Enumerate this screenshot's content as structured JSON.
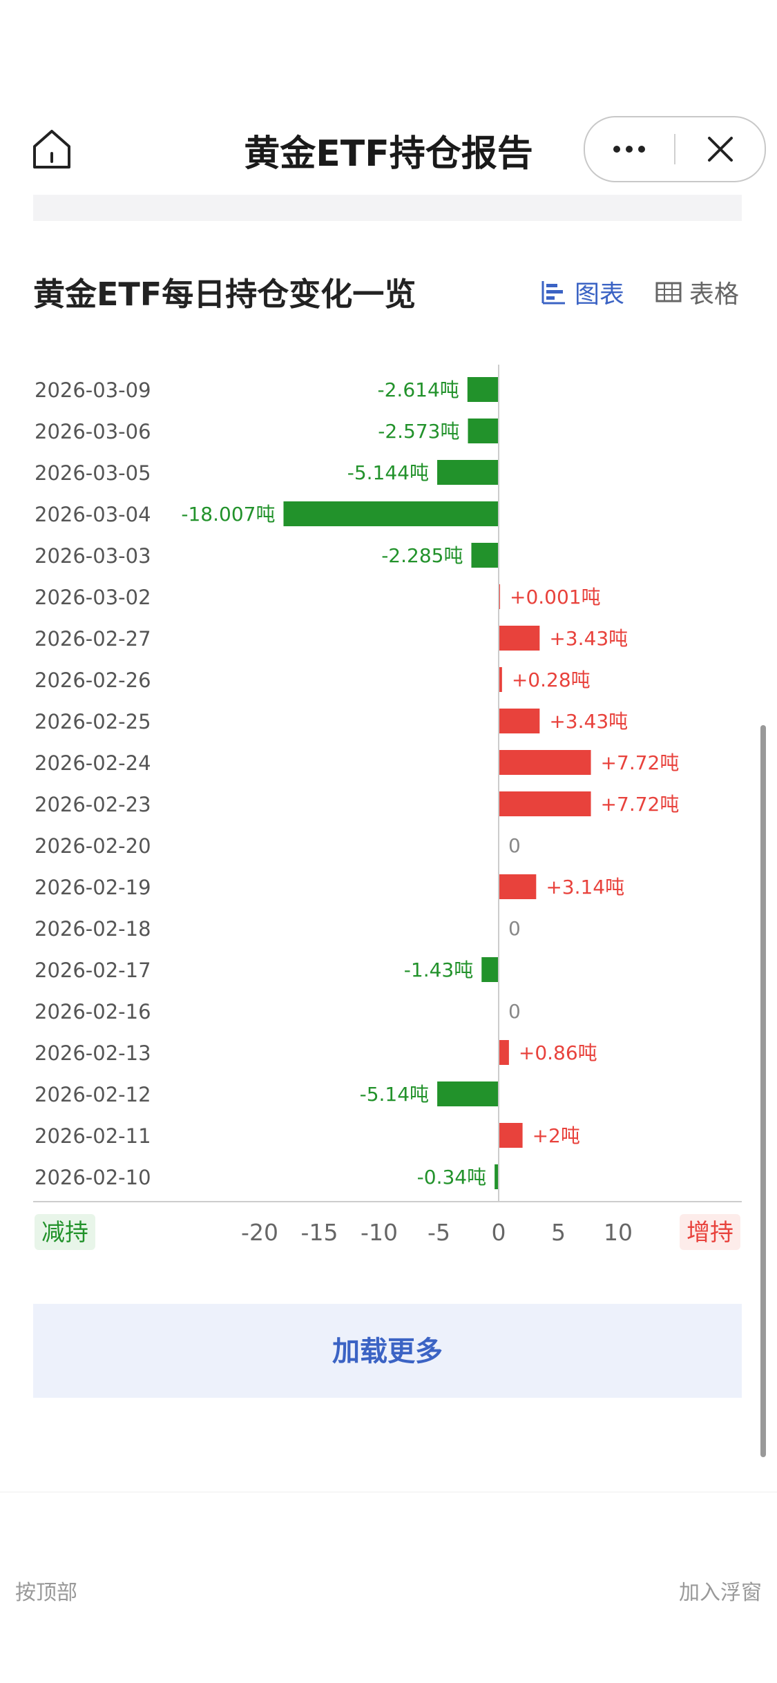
{
  "header": {
    "title": "黄金ETF持仓报告",
    "home_icon": "home-icon",
    "more_icon": "more-dots-icon",
    "close_icon": "close-icon"
  },
  "section": {
    "title": "黄金ETF每日持仓变化一览",
    "view_chart_label": "图表",
    "view_table_label": "表格",
    "active_view": "chart"
  },
  "load_more_label": "加载更多",
  "bottom": {
    "left_text": "按顶部",
    "right_text": "加入浮窗"
  },
  "chart_data": {
    "type": "bar",
    "orientation": "horizontal",
    "unit": "吨",
    "categories": [
      "2026-03-09",
      "2026-03-06",
      "2026-03-05",
      "2026-03-04",
      "2026-03-03",
      "2026-03-02",
      "2026-02-27",
      "2026-02-26",
      "2026-02-25",
      "2026-02-24",
      "2026-02-23",
      "2026-02-20",
      "2026-02-19",
      "2026-02-18",
      "2026-02-17",
      "2026-02-16",
      "2026-02-13",
      "2026-02-12",
      "2026-02-11",
      "2026-02-10"
    ],
    "values": [
      -2.614,
      -2.573,
      -5.144,
      -18.007,
      -2.285,
      0.001,
      3.43,
      0.28,
      3.43,
      7.72,
      7.72,
      0,
      3.14,
      0,
      -1.43,
      0,
      0.86,
      -5.14,
      2,
      -0.34
    ],
    "value_labels": [
      "-2.614吨",
      "-2.573吨",
      "-5.144吨",
      "-18.007吨",
      "-2.285吨",
      "+0.001吨",
      "+3.43吨",
      "+0.28吨",
      "+3.43吨",
      "+7.72吨",
      "+7.72吨",
      "0",
      "+3.14吨",
      "0",
      "-1.43吨",
      "0",
      "+0.86吨",
      "-5.14吨",
      "+2吨",
      "-0.34吨"
    ],
    "x_ticks": [
      "-20",
      "-15",
      "-10",
      "-5",
      "0",
      "5",
      "10"
    ],
    "x_range": [
      -20,
      10
    ],
    "negative_label": "减持",
    "positive_label": "增持",
    "colors": {
      "negative": "#22922b",
      "positive": "#e8423c",
      "zero_label": "#888888",
      "axis": "#cccccc"
    }
  }
}
